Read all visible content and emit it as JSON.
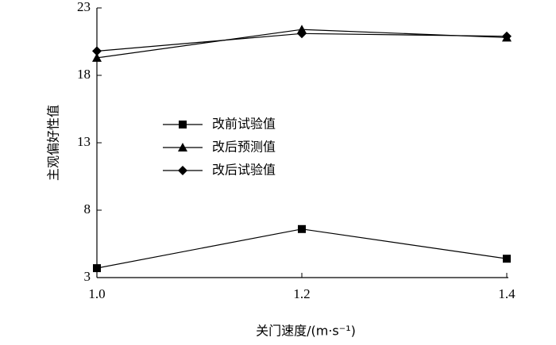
{
  "chart_data": {
    "type": "line",
    "xlabel": "关门速度/(m·s⁻¹)",
    "ylabel": "主观偏好性值",
    "x": [
      1.0,
      1.2,
      1.4
    ],
    "xlim": [
      1.0,
      1.4
    ],
    "xticks": [
      {
        "value": 1.0,
        "label": "1.0"
      },
      1.2,
      1.4
    ],
    "ylim": [
      3,
      23
    ],
    "yticks": [
      3,
      8,
      13,
      18,
      23
    ],
    "legend": "center",
    "series": [
      {
        "name": "改前试验值",
        "color": "#000000",
        "marker": "square",
        "values": [
          3.7,
          6.6,
          4.4
        ]
      },
      {
        "name": "改后预测值",
        "color": "#000000",
        "marker": "triangle",
        "values": [
          19.3,
          21.4,
          20.8
        ]
      },
      {
        "name": "改后试验值",
        "color": "#000000",
        "marker": "diamond",
        "values": [
          19.8,
          21.1,
          20.9
        ]
      }
    ]
  }
}
